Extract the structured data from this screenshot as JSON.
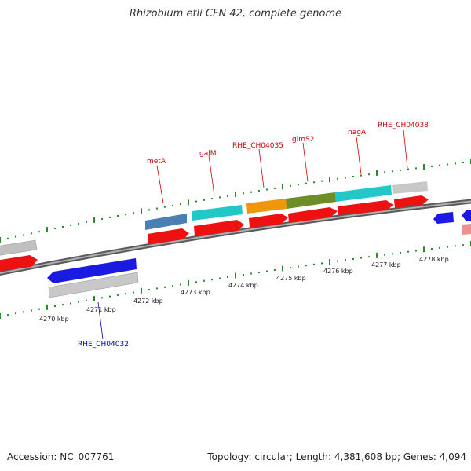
{
  "title": "Rhizobium etli CFN 42, complete genome",
  "footer": {
    "accession": "Accession: NC_007761",
    "info": "Topology: circular; Length: 4,381,608 bp; Genes: 4,094"
  },
  "axis_labels": [
    "4270 kbp",
    "4271 kbp",
    "4272 kbp",
    "4273 kbp",
    "4274 kbp",
    "4275 kbp",
    "4276 kbp",
    "4277 kbp",
    "4278 kbp"
  ],
  "gene_labels": [
    {
      "text": "metA",
      "color": "#cc0000"
    },
    {
      "text": "galM",
      "color": "#cc0000"
    },
    {
      "text": "RHE_CH04035",
      "color": "#cc0000"
    },
    {
      "text": "glmS2",
      "color": "#cc0000"
    },
    {
      "text": "nagA",
      "color": "#cc0000"
    },
    {
      "text": "RHE_CH04038",
      "color": "#cc0000"
    },
    {
      "text": "RHE_CH04032",
      "color": "#000099"
    }
  ],
  "colors": {
    "backbone": "#8a8a8a",
    "tick": "#2a8a2a",
    "cds": "#ee1111",
    "gene": "#c8c8c8",
    "blue": "#1a1ae0",
    "steel": "#4a7fb5",
    "cyan": "#22c8c8",
    "orange": "#f0960a",
    "olive": "#6e8c28",
    "label_red": "#cc0000",
    "label_blue": "#000099"
  }
}
